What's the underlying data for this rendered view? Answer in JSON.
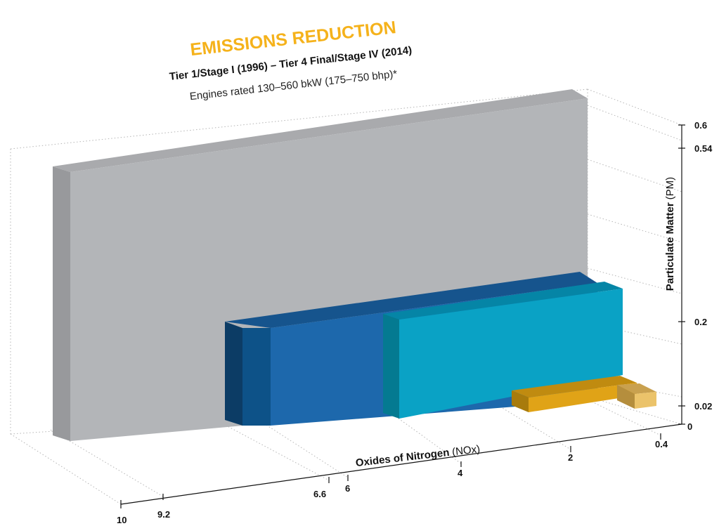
{
  "chart_data": {
    "type": "bar",
    "title": "EMISSIONS REDUCTION",
    "subtitle": "Tier 1/Stage I (1996) – Tier 4 Final/Stage IV (2014)",
    "note": "Engines rated 130–560 bkW (175–750 bhp)*",
    "xlabel_bold": "Oxides of Nitrogen",
    "xlabel_unit": "(NOx)",
    "ylabel_bold": "Particulate Matter",
    "ylabel_unit": "(PM)",
    "x_ticks": [
      "10",
      "9.2",
      "6.6",
      "6",
      "4",
      "2",
      "0.4"
    ],
    "y_ticks": [
      "0.6",
      "0.54",
      "0.2",
      "0.02",
      "0"
    ],
    "xlim": [
      10,
      0
    ],
    "ylim": [
      0,
      0.6
    ],
    "series": [
      {
        "nox": 9.2,
        "pm": 0.54,
        "color": "#b3b5b8"
      },
      {
        "nox": 6.6,
        "pm": 0.2,
        "color": "#1d68ac"
      },
      {
        "nox": 6.0,
        "pm": 0.2,
        "color": "#2278b5"
      },
      {
        "nox": 4.0,
        "pm": 0.2,
        "color": "#0aa2c5"
      },
      {
        "nox": 2.0,
        "pm": 0.02,
        "color": "#e0a317"
      },
      {
        "nox": 0.4,
        "pm": 0.02,
        "color": "#ebc36a"
      }
    ]
  }
}
